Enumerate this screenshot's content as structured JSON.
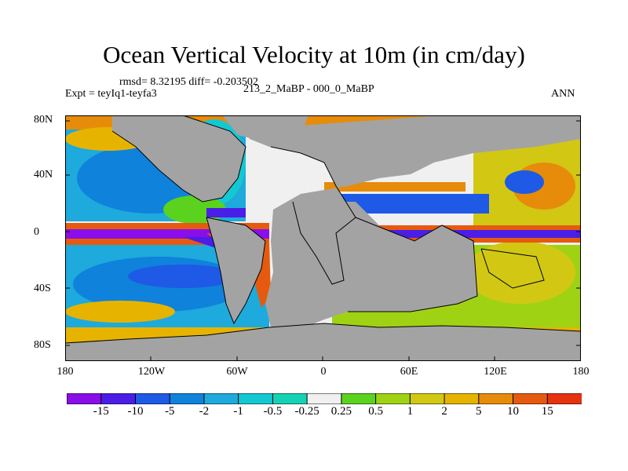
{
  "title": "Ocean Vertical Velocity at 10m (in cm/day)",
  "stats": "rmsd= 8.32195  diff= -0.203502",
  "experiment": "Expt = teyIq1-teyfa3",
  "case": "213_2_MaBP - 000_0_MaBP",
  "season": "ANN",
  "lat_labels": [
    "80N",
    "40N",
    "0",
    "40S",
    "80S"
  ],
  "lon_labels": [
    "180",
    "120W",
    "60W",
    "0",
    "60E",
    "120E",
    "180"
  ],
  "colorbar": {
    "labels": [
      "-15",
      "-10",
      "-5",
      "-2",
      "-1",
      "-0.5",
      "-0.25",
      "0.25",
      "0.5",
      "1",
      "2",
      "5",
      "10",
      "15"
    ],
    "colors": [
      "#8a0ee8",
      "#4a1ee6",
      "#1e5ae6",
      "#0f82dc",
      "#1eaadc",
      "#14c8d2",
      "#16d2b4",
      "#f0f0f0",
      "#5ad21e",
      "#a0d214",
      "#d2c814",
      "#e6b400",
      "#e68c0a",
      "#e65a0f",
      "#e6320f"
    ]
  },
  "legend_colors": {
    "land": "#a3a3a3",
    "coast": "#000000"
  }
}
